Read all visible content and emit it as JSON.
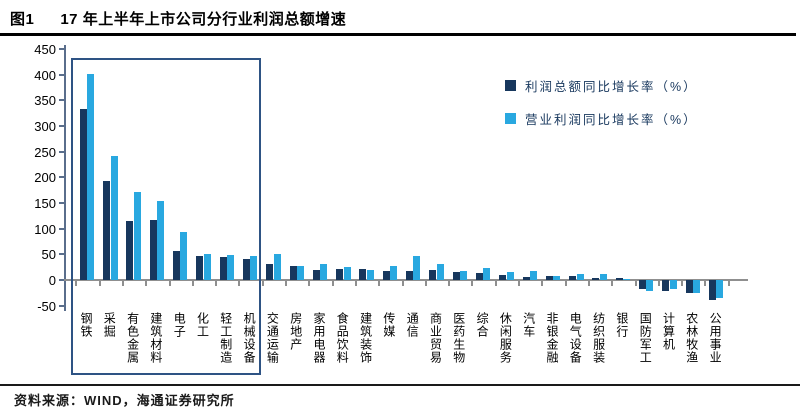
{
  "title": {
    "prefix": "图1",
    "text": "17 年上半年上市公司分行业利润总额增速"
  },
  "source": "资料来源：WIND，海通证券研究所",
  "legend": [
    {
      "label": "利润总额同比增长率（%）",
      "color": "#17375d"
    },
    {
      "label": "营业利润同比增长率（%）",
      "color": "#29a8e0"
    }
  ],
  "colors": {
    "profit_total": "#17375d",
    "operating_profit": "#29a8e0",
    "highlight_box": "#2e5384"
  },
  "chart_data": {
    "type": "bar",
    "title": "17 年上半年上市公司分行业利润总额增速",
    "xlabel": "",
    "ylabel": "",
    "ylim": [
      -50,
      450
    ],
    "yticks": [
      450,
      400,
      350,
      300,
      250,
      200,
      150,
      100,
      50,
      0,
      -50
    ],
    "grid": false,
    "legend_position": "top-right",
    "categories": [
      "钢铁",
      "采掘",
      "有色金属",
      "建筑材料",
      "电子",
      "化工",
      "轻工制造",
      "机械设备",
      "交通运输",
      "房地产",
      "家用电器",
      "食品饮料",
      "建筑装饰",
      "传媒",
      "通信",
      "商业贸易",
      "医药生物",
      "综合",
      "休闲服务",
      "汽车",
      "非银金融",
      "电气设备",
      "纺织服装",
      "银行",
      "国防军工",
      "计算机",
      "农林牧渔",
      "公用事业"
    ],
    "series": [
      {
        "name": "利润总额同比增长率（%）",
        "color": "#17375d",
        "values": [
          333,
          192,
          115,
          116,
          57,
          47,
          44,
          41,
          31,
          27,
          20,
          21,
          21,
          17,
          18,
          19,
          15,
          13,
          10,
          6,
          8,
          7,
          3,
          3,
          -17,
          -22,
          -25,
          -38
        ]
      },
      {
        "name": "营业利润同比增长率（%）",
        "color": "#29a8e0",
        "values": [
          402,
          242,
          172,
          153,
          94,
          51,
          48,
          47,
          50,
          27,
          32,
          26,
          20,
          27,
          47,
          32,
          18,
          23,
          15,
          17,
          7,
          12,
          11,
          2,
          -22,
          -17,
          -25,
          -35
        ]
      }
    ],
    "highlight_box": {
      "from_index": 0,
      "to_index": 7
    }
  }
}
